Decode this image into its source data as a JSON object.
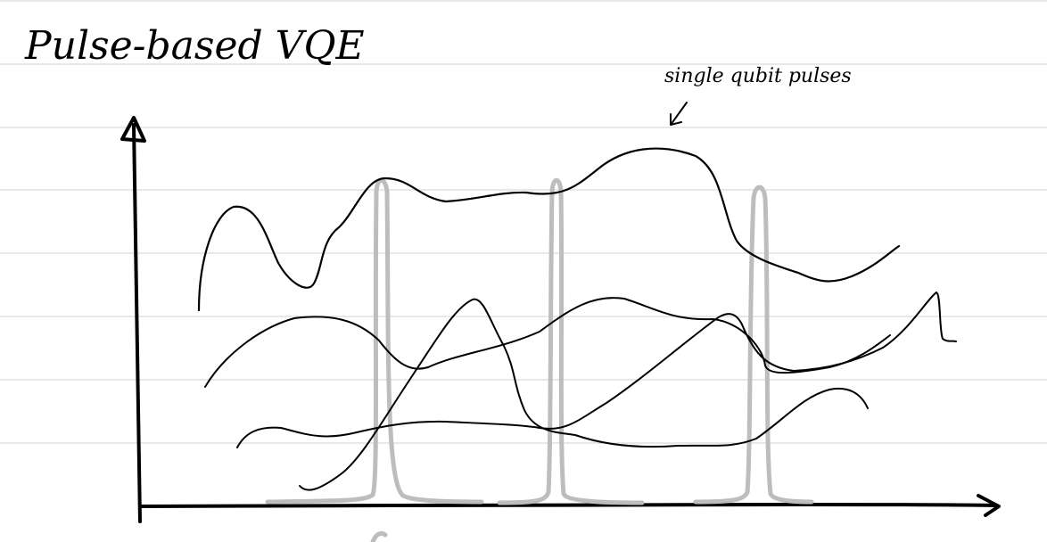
{
  "page": {
    "title": "Pulse-based VQE",
    "annotation": "single qubit pulses"
  },
  "colors": {
    "paper": "#ffffff",
    "rule_lines": "#d0d0d0",
    "ink": "#000000",
    "pulse": "#bdbdbd"
  },
  "icons": {
    "y_axis_arrow": "arrow-up-icon",
    "x_axis_arrow": "arrow-right-icon",
    "annotation_pointer": "arrow-down-left-icon"
  }
}
